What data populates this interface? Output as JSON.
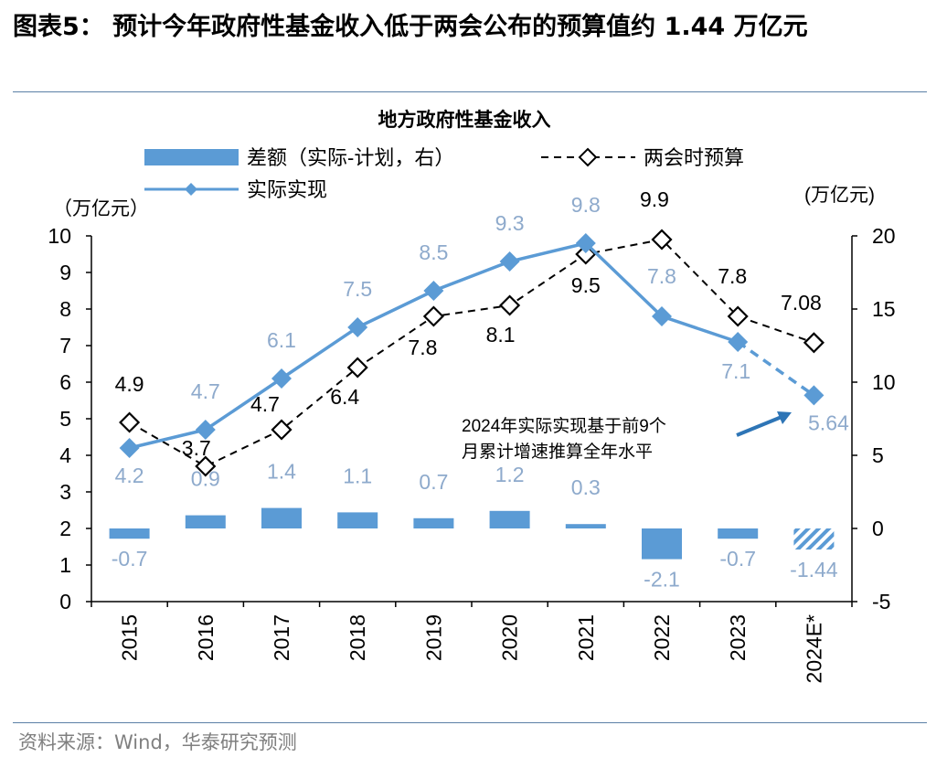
{
  "figure": {
    "title": "图表5： 预计今年政府性基金收入低于两会公布的预算值约 1.44 万亿元",
    "source": "资料来源：Wind，华泰研究预测"
  },
  "chart_data": {
    "type": "bar+line",
    "title": "地方政府性基金收入",
    "categories": [
      "2015",
      "2016",
      "2017",
      "2018",
      "2019",
      "2020",
      "2021",
      "2022",
      "2023",
      "2024E*"
    ],
    "y_left": {
      "label": "（万亿元）",
      "range": [
        0,
        10
      ],
      "ticks": [
        0,
        1,
        2,
        3,
        4,
        5,
        6,
        7,
        8,
        9,
        10
      ]
    },
    "y_right": {
      "label": "(万亿元)",
      "range": [
        -5,
        20
      ],
      "ticks": [
        -5,
        0,
        5,
        10,
        15,
        20
      ]
    },
    "series": [
      {
        "name": "差额（实际-计划，右）",
        "type": "bar",
        "axis": "right",
        "color": "#5b9bd5",
        "values": [
          -0.7,
          0.9,
          1.4,
          1.1,
          0.7,
          1.2,
          0.3,
          -2.1,
          -0.7,
          -1.44
        ],
        "labels": [
          "-0.7",
          "0.9",
          "1.4",
          "1.1",
          "0.7",
          "1.2",
          "0.3",
          "-2.1",
          "-0.7",
          "-1.44"
        ],
        "hatched_last": true
      },
      {
        "name": "两会时预算",
        "type": "line",
        "axis": "left",
        "style": "dashed",
        "marker": "diamond-open",
        "color": "#000000",
        "values": [
          4.9,
          3.7,
          4.7,
          6.4,
          7.8,
          8.1,
          9.5,
          9.9,
          7.8,
          7.08
        ],
        "labels": [
          "4.9",
          "3.7",
          "4.7",
          "6.4",
          "7.8",
          "8.1",
          "9.5",
          "9.9",
          "7.8",
          "7.08"
        ]
      },
      {
        "name": "实际实现",
        "type": "line",
        "axis": "left",
        "style": "solid",
        "marker": "diamond-filled",
        "color": "#5b9bd5",
        "values": [
          4.2,
          4.7,
          6.1,
          7.5,
          8.5,
          9.3,
          9.8,
          7.8,
          7.1,
          5.64
        ],
        "labels": [
          "4.2",
          "4.7",
          "6.1",
          "7.5",
          "8.5",
          "9.3",
          "9.8",
          "7.8",
          "7.1",
          "5.64"
        ],
        "last_segment_dashed": true
      }
    ],
    "annotation": {
      "lines": [
        "2024年实际实现基于前9个",
        "月累计增速推算全年水平"
      ]
    }
  }
}
